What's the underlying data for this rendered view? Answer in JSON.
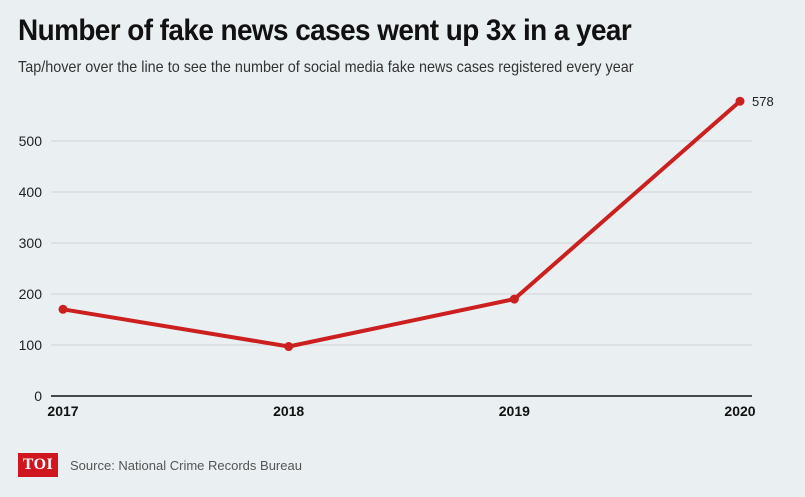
{
  "header": {
    "title": "Number of fake news cases went up 3x in a year",
    "subtitle": "Tap/hover over the line to see the number of social media fake news cases registered every year"
  },
  "footer": {
    "logo_text": "TOI",
    "source": "Source: National Crime Records Bureau"
  },
  "chart_data": {
    "type": "line",
    "title": "Number of fake news cases went up 3x in a year",
    "subtitle": "Tap/hover over the line to see the number of social media fake news cases registered every year",
    "xlabel": "",
    "ylabel": "",
    "categories": [
      "2017",
      "2018",
      "2019",
      "2020"
    ],
    "series": [
      {
        "values": [
          170,
          97,
          190,
          578
        ],
        "color": "#cc1f1f"
      }
    ],
    "annotations": [
      {
        "category": "2020",
        "text": "578"
      }
    ],
    "ylim": [
      0,
      600
    ],
    "yticks": [
      0,
      100,
      200,
      300,
      400,
      500
    ],
    "grid": true,
    "legend": "none",
    "colors": {
      "line": "#cc1f1f",
      "grid": "#cdd3d8",
      "axis": "#111111",
      "background": "#eaeff2"
    }
  }
}
